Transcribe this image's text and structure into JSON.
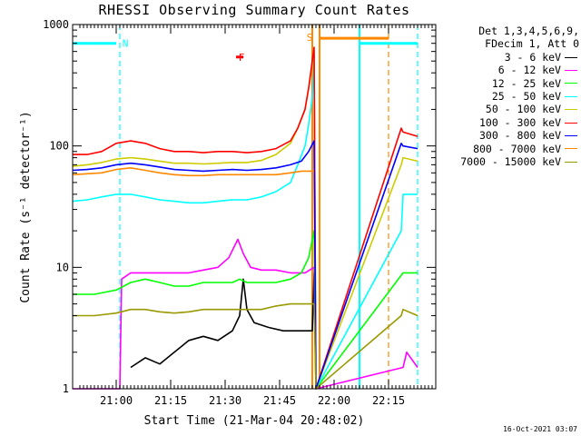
{
  "chart_data": {
    "type": "line",
    "title": "RHESSI Observing Summary Count Rates",
    "xlabel": "Start Time (21-Mar-04 20:48:02)",
    "ylabel": "Count Rate (s⁻¹ detector⁻¹)",
    "yscale": "log",
    "ylim": [
      1,
      1000
    ],
    "xlim_minutes": [
      0,
      100
    ],
    "x_ticks": [
      {
        "label": "21:00",
        "min": 12
      },
      {
        "label": "21:15",
        "min": 27
      },
      {
        "label": "21:30",
        "min": 42
      },
      {
        "label": "21:45",
        "min": 57
      },
      {
        "label": "22:00",
        "min": 72
      },
      {
        "label": "22:15",
        "min": 87
      }
    ],
    "y_ticks": [
      {
        "label": "1",
        "value": 1
      },
      {
        "label": "10",
        "value": 10
      },
      {
        "label": "100",
        "value": 100
      },
      {
        "label": "1000",
        "value": 1000
      }
    ],
    "legend_header": [
      "Det 1,3,4,5,6,9,",
      "FDecim 1, Att 0"
    ],
    "series": [
      {
        "name": "3 - 6 keV",
        "color": "#000000",
        "points": [
          [
            16,
            1.5
          ],
          [
            20,
            1.8
          ],
          [
            24,
            1.6
          ],
          [
            28,
            2.0
          ],
          [
            32,
            2.5
          ],
          [
            36,
            2.7
          ],
          [
            40,
            2.5
          ],
          [
            44,
            3.0
          ],
          [
            46,
            4.0
          ],
          [
            47,
            8.0
          ],
          [
            48,
            4.5
          ],
          [
            50,
            3.5
          ],
          [
            54,
            3.2
          ],
          [
            58,
            3.0
          ],
          [
            62,
            3.0
          ],
          [
            66,
            3.0
          ],
          [
            66.5,
            9.0
          ]
        ]
      },
      {
        "name": "6 - 12 keV",
        "color": "#ff00ff",
        "points": [
          [
            0,
            1.0
          ],
          [
            13,
            1.0
          ],
          [
            13.5,
            8.0
          ],
          [
            16,
            9.0
          ],
          [
            20,
            9.0
          ],
          [
            24,
            9.0
          ],
          [
            28,
            9.0
          ],
          [
            32,
            9.0
          ],
          [
            36,
            9.5
          ],
          [
            40,
            10.0
          ],
          [
            43,
            12.0
          ],
          [
            45.5,
            17.0
          ],
          [
            47,
            13.0
          ],
          [
            49,
            10.0
          ],
          [
            52,
            9.5
          ],
          [
            56,
            9.5
          ],
          [
            60,
            9.0
          ],
          [
            64,
            9.0
          ],
          [
            66.5,
            10.0
          ],
          [
            67,
            1.0
          ],
          [
            91,
            1.5
          ],
          [
            92,
            2.0
          ],
          [
            95,
            1.5
          ]
        ]
      },
      {
        "name": "12 - 25 keV",
        "color": "#00ff00",
        "points": [
          [
            0,
            6.0
          ],
          [
            6,
            6.0
          ],
          [
            12,
            6.5
          ],
          [
            16,
            7.5
          ],
          [
            20,
            8.0
          ],
          [
            24,
            7.5
          ],
          [
            28,
            7.0
          ],
          [
            32,
            7.0
          ],
          [
            36,
            7.5
          ],
          [
            40,
            7.5
          ],
          [
            44,
            7.5
          ],
          [
            46,
            8.0
          ],
          [
            48,
            7.5
          ],
          [
            52,
            7.5
          ],
          [
            56,
            7.5
          ],
          [
            60,
            8.0
          ],
          [
            63,
            9.0
          ],
          [
            65,
            12.0
          ],
          [
            66.5,
            20.0
          ],
          [
            67,
            1.0
          ],
          [
            91,
            9.0
          ],
          [
            95,
            9.0
          ]
        ]
      },
      {
        "name": "25 - 50 keV",
        "color": "#00ffff",
        "points": [
          [
            0,
            35
          ],
          [
            4,
            36
          ],
          [
            8,
            38
          ],
          [
            12,
            40
          ],
          [
            16,
            40
          ],
          [
            20,
            38
          ],
          [
            24,
            36
          ],
          [
            28,
            35
          ],
          [
            32,
            34
          ],
          [
            36,
            34
          ],
          [
            40,
            35
          ],
          [
            44,
            36
          ],
          [
            48,
            36
          ],
          [
            52,
            38
          ],
          [
            56,
            42
          ],
          [
            60,
            50
          ],
          [
            62,
            70
          ],
          [
            64,
            100
          ],
          [
            65,
            150
          ],
          [
            66,
            250
          ],
          [
            66.5,
            500
          ],
          [
            67,
            1.0
          ],
          [
            90.5,
            20
          ],
          [
            91,
            40
          ],
          [
            95,
            40
          ]
        ]
      },
      {
        "name": "50 - 100 keV",
        "color": "#cccc00",
        "points": [
          [
            0,
            68
          ],
          [
            4,
            70
          ],
          [
            8,
            73
          ],
          [
            12,
            78
          ],
          [
            16,
            80
          ],
          [
            20,
            78
          ],
          [
            24,
            75
          ],
          [
            28,
            72
          ],
          [
            32,
            72
          ],
          [
            36,
            71
          ],
          [
            40,
            72
          ],
          [
            44,
            73
          ],
          [
            48,
            73
          ],
          [
            52,
            76
          ],
          [
            56,
            85
          ],
          [
            60,
            105
          ],
          [
            62,
            140
          ],
          [
            64,
            200
          ],
          [
            65,
            300
          ],
          [
            66.5,
            600
          ],
          [
            67,
            1.0
          ],
          [
            90.5,
            70
          ],
          [
            91,
            80
          ],
          [
            95,
            75
          ]
        ]
      },
      {
        "name": "100 - 300 keV",
        "color": "#ff0000",
        "points": [
          [
            0,
            85
          ],
          [
            4,
            85
          ],
          [
            8,
            90
          ],
          [
            12,
            105
          ],
          [
            16,
            110
          ],
          [
            20,
            105
          ],
          [
            24,
            95
          ],
          [
            28,
            90
          ],
          [
            32,
            90
          ],
          [
            36,
            88
          ],
          [
            40,
            90
          ],
          [
            44,
            90
          ],
          [
            48,
            88
          ],
          [
            52,
            90
          ],
          [
            56,
            95
          ],
          [
            60,
            110
          ],
          [
            62,
            140
          ],
          [
            64,
            200
          ],
          [
            65,
            300
          ],
          [
            66.5,
            650
          ],
          [
            67,
            1.0
          ],
          [
            90.5,
            140
          ],
          [
            91,
            130
          ],
          [
            95,
            120
          ]
        ]
      },
      {
        "name": "300 - 800 keV",
        "color": "#0000ff",
        "points": [
          [
            0,
            63
          ],
          [
            4,
            64
          ],
          [
            8,
            66
          ],
          [
            12,
            70
          ],
          [
            16,
            72
          ],
          [
            20,
            70
          ],
          [
            24,
            67
          ],
          [
            28,
            64
          ],
          [
            32,
            63
          ],
          [
            36,
            62
          ],
          [
            40,
            63
          ],
          [
            44,
            64
          ],
          [
            48,
            63
          ],
          [
            52,
            64
          ],
          [
            56,
            66
          ],
          [
            60,
            70
          ],
          [
            63,
            75
          ],
          [
            65,
            90
          ],
          [
            66.5,
            110
          ],
          [
            67,
            1.0
          ],
          [
            90.5,
            105
          ],
          [
            91,
            100
          ],
          [
            95,
            95
          ]
        ]
      },
      {
        "name": "800 - 7000 keV",
        "color": "#ff8800",
        "points": [
          [
            0,
            58
          ],
          [
            4,
            59
          ],
          [
            8,
            60
          ],
          [
            12,
            64
          ],
          [
            16,
            66
          ],
          [
            20,
            63
          ],
          [
            24,
            60
          ],
          [
            28,
            58
          ],
          [
            32,
            57
          ],
          [
            36,
            57
          ],
          [
            40,
            58
          ],
          [
            44,
            58
          ],
          [
            48,
            58
          ],
          [
            52,
            58
          ],
          [
            56,
            58
          ],
          [
            60,
            60
          ],
          [
            63,
            62
          ],
          [
            66.5,
            62
          ]
        ]
      },
      {
        "name": "7000 - 15000 keV",
        "color": "#999900",
        "points": [
          [
            0,
            4.0
          ],
          [
            6,
            4.0
          ],
          [
            12,
            4.2
          ],
          [
            16,
            4.5
          ],
          [
            20,
            4.5
          ],
          [
            24,
            4.3
          ],
          [
            28,
            4.2
          ],
          [
            32,
            4.3
          ],
          [
            36,
            4.5
          ],
          [
            40,
            4.5
          ],
          [
            44,
            4.5
          ],
          [
            48,
            4.5
          ],
          [
            52,
            4.5
          ],
          [
            56,
            4.8
          ],
          [
            60,
            5.0
          ],
          [
            64,
            5.0
          ],
          [
            66.5,
            5.0
          ],
          [
            67,
            1.0
          ],
          [
            90.5,
            4.0
          ],
          [
            91,
            4.5
          ],
          [
            95,
            4.0
          ]
        ]
      }
    ],
    "annotations": [
      {
        "label": "N",
        "color": "#00ffff",
        "at_min": 13
      },
      {
        "label": "F",
        "color": "#ff0000",
        "at_min": 45
      },
      {
        "label": "S",
        "color": "#ff8800",
        "at_min": 66
      }
    ],
    "flags": [
      {
        "color": "#00ffff",
        "y_value": 700,
        "from_min": 0,
        "to_min": 12
      },
      {
        "color": "#00ffff",
        "y_value": 700,
        "from_min": 79,
        "to_min": 95
      },
      {
        "color": "#ff8800",
        "y_value": 770,
        "from_min": 68,
        "to_min": 87
      },
      {
        "color": "#ff0000",
        "y_value": 540,
        "from_min": 45,
        "to_min": 47
      }
    ],
    "vlines": [
      {
        "color": "#00ffff",
        "min": 13,
        "style": "dashed"
      },
      {
        "color": "#ff8800",
        "min": 66,
        "style": "solid"
      },
      {
        "color": "#ff8800",
        "min": 68,
        "style": "solid"
      },
      {
        "color": "#00ffff",
        "min": 79,
        "style": "solid"
      },
      {
        "color": "#ff8800",
        "min": 87,
        "style": "dashed"
      },
      {
        "color": "#00ffff",
        "min": 95,
        "style": "dashed"
      }
    ]
  },
  "footer_date": "16-Oct-2021 03:07"
}
